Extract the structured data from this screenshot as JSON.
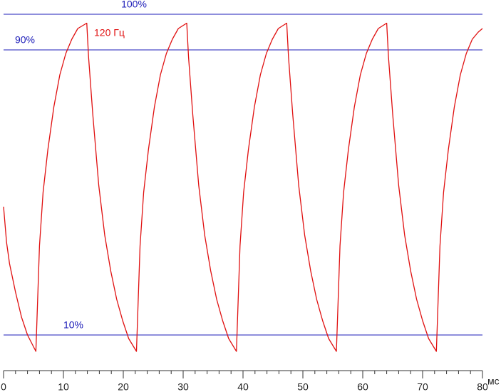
{
  "chart_data": {
    "type": "line",
    "annotation": "120 Гц",
    "x_unit": "мс",
    "xlim": [
      0,
      80
    ],
    "xticks": [
      0,
      10,
      20,
      30,
      40,
      50,
      60,
      70,
      80
    ],
    "xticks_minor": [
      2,
      4,
      6,
      8,
      12,
      14,
      16,
      18,
      22,
      24,
      26,
      28,
      32,
      34,
      36,
      38,
      42,
      44,
      46,
      48,
      52,
      54,
      56,
      58,
      62,
      64,
      66,
      68,
      72,
      74,
      76,
      78
    ],
    "ylim": [
      0,
      104
    ],
    "reference_lines": [
      {
        "value": 100,
        "label": "100%"
      },
      {
        "value": 90,
        "label": "90%"
      },
      {
        "value": 10,
        "label": "10%"
      }
    ],
    "reference_color": "#1c1cb8",
    "series": [
      {
        "name": "120 Гц",
        "color": "#e01010",
        "x": [
          0,
          0.5,
          1,
          2,
          3,
          4,
          5.4,
          6.0,
          6.6,
          7.4,
          8.4,
          9.4,
          10.4,
          11.4,
          12.4,
          13.9,
          14.2,
          14.9,
          15.9,
          16.9,
          17.9,
          18.9,
          19.9,
          20.9,
          22.2,
          22.8,
          23.4,
          24.2,
          25.2,
          26.2,
          27.2,
          28.2,
          29.2,
          30.6,
          30.9,
          31.6,
          32.6,
          33.6,
          34.6,
          35.6,
          36.6,
          37.6,
          38.9,
          39.5,
          40.1,
          40.9,
          41.9,
          42.9,
          43.9,
          44.9,
          45.9,
          47.3,
          47.6,
          48.3,
          49.3,
          50.3,
          51.3,
          52.3,
          53.3,
          54.3,
          55.6,
          56.2,
          56.8,
          57.6,
          58.6,
          59.6,
          60.6,
          61.6,
          62.6,
          64.0,
          64.3,
          65.0,
          66.0,
          67.0,
          68.0,
          69.0,
          70.0,
          71.0,
          72.3,
          72.9,
          73.5,
          74.3,
          75.3,
          76.3,
          77.3,
          78.3,
          79.3,
          80
        ],
        "values": [
          46,
          36,
          30,
          22,
          15,
          10,
          5.4,
          35,
          50,
          62,
          74,
          83,
          89,
          93,
          96,
          97.5,
          88,
          72,
          52,
          38,
          28,
          20,
          14,
          9,
          5.4,
          35,
          50,
          62,
          74,
          83,
          89,
          93,
          96,
          97.5,
          88,
          72,
          52,
          38,
          28,
          20,
          14,
          9,
          5.4,
          35,
          50,
          62,
          74,
          83,
          89,
          93,
          96,
          97.5,
          88,
          72,
          52,
          38,
          28,
          20,
          14,
          9,
          5.4,
          35,
          50,
          62,
          74,
          83,
          89,
          93,
          96,
          97.5,
          88,
          72,
          52,
          38,
          28,
          20,
          14,
          9,
          5.4,
          35,
          50,
          62,
          74,
          83,
          89,
          93,
          95,
          96
        ]
      }
    ]
  }
}
